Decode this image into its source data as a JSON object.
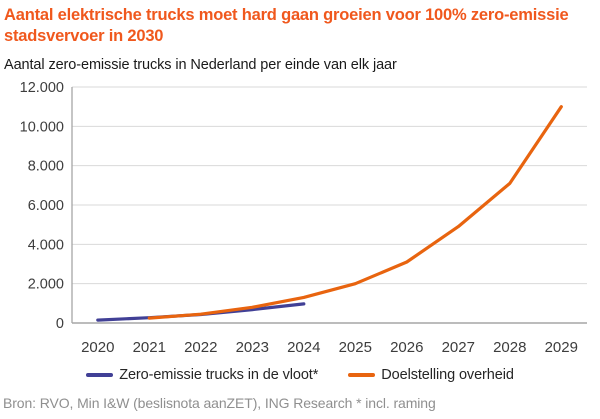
{
  "header": {
    "title": "Aantal elektrische trucks moet hard gaan groeien voor 100% zero-emissie stadsvervoer in 2030",
    "subtitle": "Aantal zero-emissie trucks in Nederland per einde van elk jaar"
  },
  "chart_data": {
    "type": "line",
    "categories": [
      "2020",
      "2021",
      "2022",
      "2023",
      "2024",
      "2025",
      "2026",
      "2027",
      "2028",
      "2029"
    ],
    "series": [
      {
        "name": "Zero-emissie trucks in de vloot*",
        "color": "#414096",
        "values": [
          150,
          270,
          430,
          680,
          970,
          null,
          null,
          null,
          null,
          null
        ]
      },
      {
        "name": "Doelstelling overheid",
        "color": "#E8640F",
        "values": [
          null,
          250,
          450,
          800,
          1300,
          2000,
          3100,
          4900,
          7100,
          11000
        ]
      }
    ],
    "ylim": [
      0,
      12000
    ],
    "ytick_interval": 2000,
    "ytick_labels": [
      "0",
      "2.000",
      "4.000",
      "6.000",
      "8.000",
      "10.000",
      "12.000"
    ],
    "grid": true,
    "legend_position": "bottom",
    "xlabel": "",
    "ylabel": ""
  },
  "footer": {
    "source": "Bron: RVO, Min I&W (beslisnota aanZET), ING Research * incl. raming"
  },
  "colors": {
    "title": "#F0581D",
    "axis_text": "#3D3D3D",
    "grid_line": "#D9D9D9",
    "axis_line": "#A6A6A6",
    "footer_text": "#8F8F8F"
  }
}
